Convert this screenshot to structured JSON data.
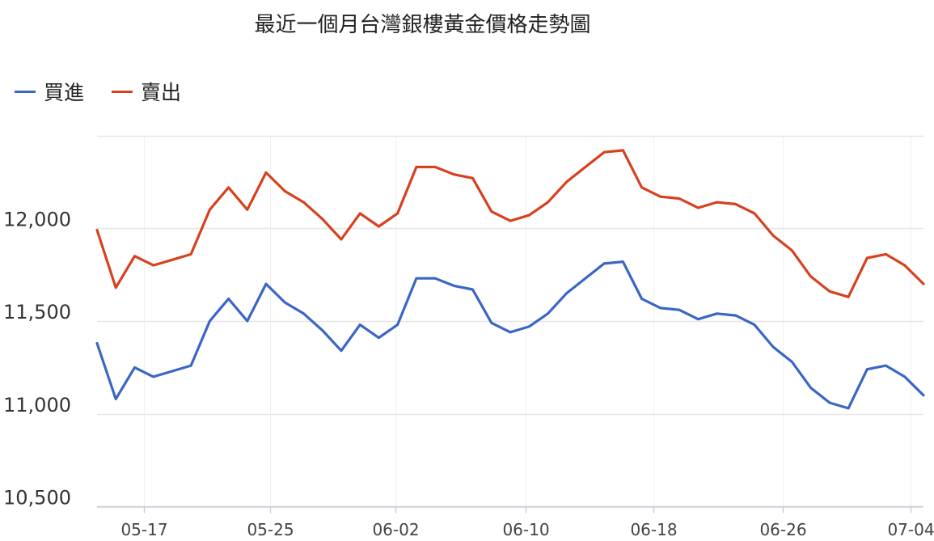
{
  "chart_data": {
    "type": "line",
    "title": "最近一個月台灣銀樓黃金價格走勢圖",
    "xlabel": "",
    "ylabel": "",
    "ylim": [
      10500,
      12500
    ],
    "yticks": [
      10500,
      11000,
      11500,
      12000
    ],
    "ytick_labels": [
      "10,500",
      "11,000",
      "11,500",
      "12,000"
    ],
    "xtick_labels": [
      "05-17",
      "05-25",
      "06-02",
      "06-10",
      "06-18",
      "06-26",
      "07-04"
    ],
    "xtick_index": [
      2.5,
      9.2,
      15.9,
      22.8,
      29.6,
      36.5,
      43.3
    ],
    "grid": true,
    "legend_position": "top-left",
    "colors": {
      "buy": "#3a66c4",
      "sell": "#d6411e"
    },
    "series": [
      {
        "name": "買進",
        "key": "buy",
        "values": [
          11380,
          11080,
          11250,
          11200,
          11230,
          11260,
          11500,
          11620,
          11500,
          11700,
          11600,
          11540,
          11450,
          11340,
          11480,
          11410,
          11480,
          11730,
          11730,
          11690,
          11670,
          11490,
          11440,
          11470,
          11540,
          11650,
          11730,
          11810,
          11820,
          11620,
          11570,
          11560,
          11510,
          11540,
          11530,
          11480,
          11360,
          11280,
          11140,
          11060,
          11030,
          11240,
          11260,
          11200,
          11100
        ]
      },
      {
        "name": "賣出",
        "key": "sell",
        "values": [
          11990,
          11680,
          11850,
          11800,
          11830,
          11860,
          12100,
          12220,
          12100,
          12300,
          12200,
          12140,
          12050,
          11940,
          12080,
          12010,
          12080,
          12330,
          12330,
          12290,
          12270,
          12090,
          12040,
          12070,
          12140,
          12250,
          12330,
          12410,
          12420,
          12220,
          12170,
          12160,
          12110,
          12140,
          12130,
          12080,
          11960,
          11880,
          11740,
          11660,
          11630,
          11840,
          11860,
          11800,
          11700
        ]
      }
    ]
  }
}
